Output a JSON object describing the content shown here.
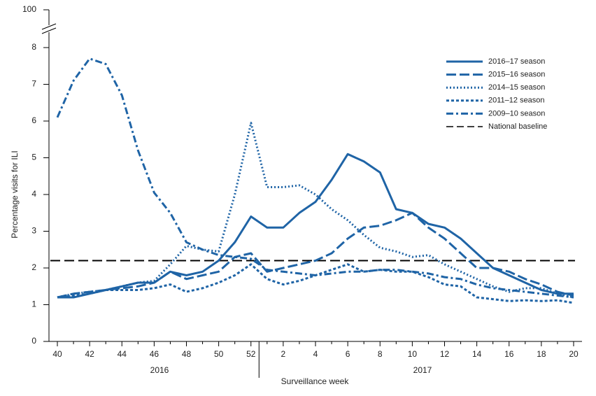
{
  "chart_data": {
    "type": "line",
    "y_label": "Percentage visits for ILI",
    "x_label": "Surveillance week",
    "year_labels": [
      "2016",
      "2017"
    ],
    "categories": [
      "40",
      null,
      "42",
      null,
      "44",
      null,
      "46",
      null,
      "48",
      null,
      "50",
      null,
      "52",
      null,
      "2",
      null,
      "4",
      null,
      "6",
      null,
      "8",
      null,
      "10",
      null,
      "12",
      null,
      "14",
      null,
      "16",
      null,
      "18",
      null,
      "20"
    ],
    "ylim": [
      0,
      8
    ],
    "yticks": [
      0,
      1,
      2,
      3,
      4,
      5,
      6,
      7,
      8
    ],
    "break_tick": 100,
    "series": [
      {
        "name": "2016–17 season",
        "color": "#1f64a6",
        "dash": "",
        "values": [
          1.2,
          1.2,
          1.3,
          1.4,
          1.5,
          1.6,
          1.6,
          1.9,
          1.8,
          1.9,
          2.2,
          2.7,
          3.4,
          3.1,
          3.1,
          3.5,
          3.8,
          4.4,
          5.1,
          4.9,
          4.6,
          3.6,
          3.5,
          3.2,
          3.1,
          2.8,
          2.4,
          2.0,
          1.8,
          1.6,
          1.4,
          1.3,
          1.3
        ]
      },
      {
        "name": "2015–16 season",
        "color": "#1f64a6",
        "dash": "14 5",
        "values": [
          1.2,
          1.3,
          1.35,
          1.4,
          1.45,
          1.5,
          1.6,
          1.9,
          1.7,
          1.8,
          1.9,
          2.3,
          2.4,
          1.9,
          2.0,
          2.1,
          2.2,
          2.4,
          2.8,
          3.1,
          3.15,
          3.3,
          3.5,
          3.1,
          2.8,
          2.4,
          2.0,
          2.0,
          1.9,
          1.7,
          1.55,
          1.35,
          1.25
        ]
      },
      {
        "name": "2014–15 season",
        "color": "#1f64a6",
        "dash": "2 3",
        "values": [
          1.2,
          1.3,
          1.35,
          1.4,
          1.5,
          1.6,
          1.65,
          2.1,
          2.6,
          2.5,
          2.45,
          4.0,
          5.95,
          4.2,
          4.2,
          4.25,
          4.0,
          3.6,
          3.3,
          2.9,
          2.55,
          2.45,
          2.3,
          2.35,
          2.1,
          1.9,
          1.7,
          1.5,
          1.35,
          1.45,
          1.45,
          1.3,
          1.2
        ]
      },
      {
        "name": "2011–12 season",
        "color": "#1f64a6",
        "dash": "4 3",
        "values": [
          1.2,
          1.25,
          1.3,
          1.4,
          1.4,
          1.4,
          1.45,
          1.55,
          1.35,
          1.45,
          1.6,
          1.8,
          2.1,
          1.7,
          1.55,
          1.65,
          1.8,
          1.95,
          2.1,
          1.9,
          1.95,
          1.9,
          1.9,
          1.75,
          1.55,
          1.5,
          1.2,
          1.15,
          1.1,
          1.12,
          1.1,
          1.12,
          1.05
        ]
      },
      {
        "name": "2009–10 season",
        "color": "#1f64a6",
        "dash": "10 4 3 4",
        "values": [
          6.1,
          7.1,
          7.7,
          7.55,
          6.7,
          5.2,
          4.05,
          3.5,
          2.7,
          2.5,
          2.35,
          2.3,
          2.25,
          1.95,
          1.9,
          1.85,
          1.8,
          1.85,
          1.9,
          1.9,
          1.95,
          1.95,
          1.9,
          1.85,
          1.75,
          1.7,
          1.55,
          1.45,
          1.4,
          1.35,
          1.3,
          1.25,
          1.2
        ]
      }
    ],
    "baseline": {
      "name": "National baseline",
      "value": 2.2,
      "color": "#000000"
    }
  }
}
